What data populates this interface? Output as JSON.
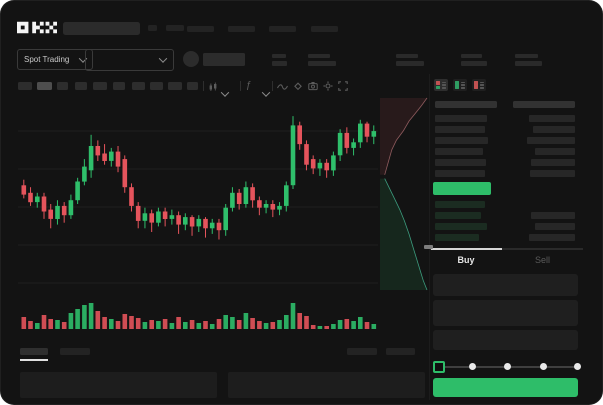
{
  "window": {
    "bg": "#131313"
  },
  "header": {
    "logo": "OKX",
    "market_selector_label": "Spot Trading"
  },
  "toolbar_icons": [
    "candle-style-icon",
    "chevron-down-icon",
    "indicator-fx-icon",
    "chevron-down-icon",
    "line-type-icon",
    "draw-tool-icon",
    "camera-icon",
    "settings-gear-icon",
    "fullscreen-icon"
  ],
  "order_book": {
    "view_icons": [
      "orderbook-combined-icon",
      "orderbook-bids-icon",
      "orderbook-asks-icon"
    ],
    "header_bar_widths": [
      62,
      62
    ],
    "ask_rows": [
      {
        "l": 52,
        "r": 46
      },
      {
        "l": 50,
        "r": 42
      },
      {
        "l": 53,
        "r": 48
      },
      {
        "l": 48,
        "r": 40
      },
      {
        "l": 51,
        "r": 44
      },
      {
        "l": 50,
        "r": 45
      }
    ],
    "last_price_bar": {
      "color": "#2ebd69",
      "width": 58
    },
    "bid_rows": [
      {
        "l": 50,
        "r": 0
      },
      {
        "l": 46,
        "r": 44
      },
      {
        "l": 52,
        "r": 40
      },
      {
        "l": 44,
        "r": 46
      }
    ]
  },
  "trade_panel": {
    "buy_tab_label": "Buy",
    "sell_tab_label": "Sell",
    "amount_slider_stops": [
      0,
      25,
      50,
      75,
      100
    ],
    "amount_slider_selected": 0,
    "buy_button_color": "#2ebd69"
  },
  "chart_data": {
    "type": "candlestick",
    "title": "",
    "axes_labeled": false,
    "grid": true,
    "volume_pane": true,
    "up_color": "#2fbf6b",
    "down_color": "#e5545c",
    "candles_ohlcv": [
      [
        56,
        59,
        49,
        51,
        12
      ],
      [
        52,
        55,
        45,
        47,
        8
      ],
      [
        47,
        52,
        44,
        50,
        6
      ],
      [
        50,
        52,
        38,
        42,
        14
      ],
      [
        43,
        46,
        33,
        38,
        10
      ],
      [
        38,
        48,
        35,
        45,
        9
      ],
      [
        45,
        47,
        36,
        40,
        7
      ],
      [
        40,
        51,
        38,
        48,
        16
      ],
      [
        48,
        60,
        46,
        58,
        20
      ],
      [
        58,
        70,
        56,
        66,
        24
      ],
      [
        64,
        83,
        60,
        77,
        26
      ],
      [
        77,
        80,
        69,
        72,
        18
      ],
      [
        73,
        78,
        67,
        69,
        12
      ],
      [
        69,
        76,
        66,
        74,
        10
      ],
      [
        74,
        77,
        63,
        66,
        8
      ],
      [
        70,
        72,
        52,
        55,
        15
      ],
      [
        55,
        57,
        42,
        45,
        13
      ],
      [
        45,
        47,
        33,
        37,
        11
      ],
      [
        37,
        44,
        33,
        41,
        7
      ],
      [
        41,
        43,
        31,
        36,
        9
      ],
      [
        36,
        44,
        34,
        42,
        8
      ],
      [
        42,
        44,
        34,
        38,
        10
      ],
      [
        38,
        43,
        35,
        40,
        6
      ],
      [
        40,
        42,
        30,
        35,
        12
      ],
      [
        35,
        41,
        32,
        39,
        7
      ],
      [
        39,
        40,
        29,
        34,
        9
      ],
      [
        34,
        40,
        31,
        38,
        6
      ],
      [
        38,
        39,
        28,
        33,
        8
      ],
      [
        33,
        38,
        30,
        36,
        5
      ],
      [
        36,
        38,
        27,
        32,
        10
      ],
      [
        32,
        46,
        29,
        44,
        14
      ],
      [
        44,
        55,
        42,
        52,
        12
      ],
      [
        52,
        54,
        43,
        46,
        9
      ],
      [
        46,
        58,
        44,
        55,
        16
      ],
      [
        55,
        57,
        44,
        48,
        11
      ],
      [
        48,
        50,
        40,
        44,
        8
      ],
      [
        44,
        48,
        41,
        46,
        6
      ],
      [
        46,
        48,
        39,
        43,
        7
      ],
      [
        43,
        47,
        40,
        45,
        9
      ],
      [
        45,
        58,
        42,
        56,
        14
      ],
      [
        56,
        93,
        54,
        88,
        26
      ],
      [
        88,
        90,
        75,
        78,
        16
      ],
      [
        78,
        80,
        64,
        67,
        13
      ],
      [
        70,
        72,
        62,
        65,
        4
      ],
      [
        65,
        70,
        61,
        68,
        3
      ],
      [
        68,
        70,
        60,
        64,
        3
      ],
      [
        64,
        74,
        61,
        72,
        5
      ],
      [
        72,
        86,
        69,
        84,
        9
      ],
      [
        84,
        87,
        73,
        76,
        10
      ],
      [
        76,
        81,
        72,
        79,
        8
      ],
      [
        79,
        91,
        76,
        89,
        12
      ],
      [
        89,
        90,
        79,
        82,
        7
      ],
      [
        82,
        88,
        78,
        85,
        5
      ]
    ],
    "depth": {
      "ask_fill": "rgba(226,85,94,0.10)",
      "bid_fill": "rgba(47,191,107,0.12)",
      "ask_line": "#8f5b5e",
      "bid_line": "#3c9c7e",
      "ask_curve": [
        [
          0.1,
          0.4
        ],
        [
          0.18,
          0.33
        ],
        [
          0.25,
          0.27
        ],
        [
          0.35,
          0.22
        ],
        [
          0.5,
          0.17
        ],
        [
          0.62,
          0.12
        ],
        [
          0.75,
          0.08
        ],
        [
          0.88,
          0.04
        ],
        [
          1,
          0
        ]
      ],
      "bid_curve": [
        [
          0.1,
          0.42
        ],
        [
          0.2,
          0.47
        ],
        [
          0.3,
          0.52
        ],
        [
          0.42,
          0.58
        ],
        [
          0.52,
          0.64
        ],
        [
          0.62,
          0.71
        ],
        [
          0.72,
          0.79
        ],
        [
          0.82,
          0.87
        ],
        [
          0.92,
          0.95
        ],
        [
          1,
          1
        ]
      ]
    }
  }
}
